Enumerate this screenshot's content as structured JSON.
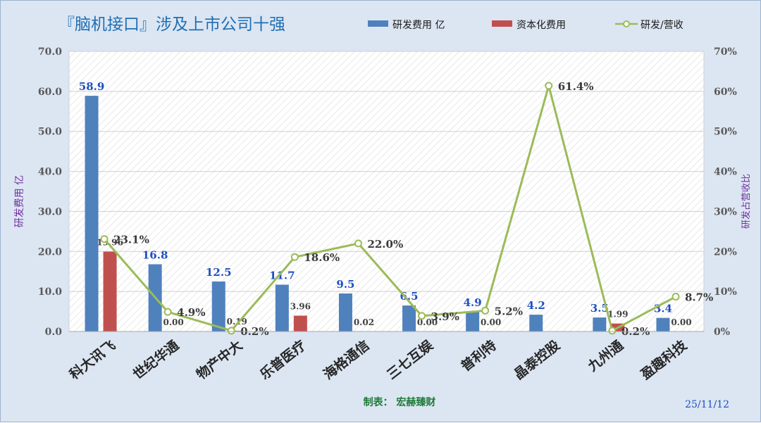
{
  "chart_data": {
    "type": "bar",
    "title": "『脑机接口』涉及上市公司十强",
    "categories": [
      "科大讯飞",
      "世纪华通",
      "物产中大",
      "乐普医疗",
      "海格通信",
      "三七互娱",
      "普利特",
      "晶泰控股",
      "九州通",
      "盈趣科技"
    ],
    "series": [
      {
        "name": "研发费用 亿",
        "kind": "bar",
        "axis": "left",
        "color": "#4f81bd",
        "values": [
          58.9,
          16.8,
          12.5,
          11.7,
          9.5,
          6.5,
          4.9,
          4.2,
          3.5,
          3.4
        ],
        "labels": [
          "58.9",
          "16.8",
          "12.5",
          "11.7",
          "9.5",
          "6.5",
          "4.9",
          "4.2",
          "3.5",
          "3.4"
        ]
      },
      {
        "name": "资本化费用",
        "kind": "bar",
        "axis": "left",
        "color": "#c0504d",
        "values": [
          19.96,
          0.0,
          0.19,
          3.96,
          0.02,
          0.0,
          0.0,
          null,
          1.99,
          0.0
        ],
        "labels": [
          "19.96",
          "0.00",
          "0.19",
          "3.96",
          "0.02",
          "0.00",
          "0.00",
          "",
          "1.99",
          "0.00"
        ]
      },
      {
        "name": "研发/营收",
        "kind": "line",
        "axis": "right",
        "color": "#9bbb59",
        "values": [
          23.1,
          4.9,
          0.2,
          18.6,
          22.0,
          3.9,
          5.2,
          61.4,
          0.2,
          8.7
        ],
        "labels": [
          "23.1%",
          "4.9%",
          "0.2%",
          "18.6%",
          "22.0%",
          "3.9%",
          "5.2%",
          "61.4%",
          "0.2%",
          "8.7%"
        ]
      }
    ],
    "ylabel": "研发费用 亿",
    "y2label": "研发占营收比",
    "ylim": [
      0,
      70
    ],
    "y2lim": [
      0,
      70
    ],
    "yticks": [
      "0.0",
      "10.0",
      "20.0",
      "30.0",
      "40.0",
      "50.0",
      "60.0",
      "70.0"
    ],
    "y2ticks": [
      "0%",
      "10%",
      "20%",
      "30%",
      "40%",
      "50%",
      "60%",
      "70%"
    ],
    "legend_position": "top-right",
    "grid": "hatched background"
  },
  "footer": {
    "credit": "制表：  宏赫臻财",
    "date": "25/11/12"
  },
  "colors": {
    "background": "#dce6f2",
    "plot_fill": "#ffffff",
    "title": "#1f6fb5",
    "axis_label": "#7030a0",
    "bar_label": "#1f4fc0",
    "credit": "#1f7a3a"
  }
}
